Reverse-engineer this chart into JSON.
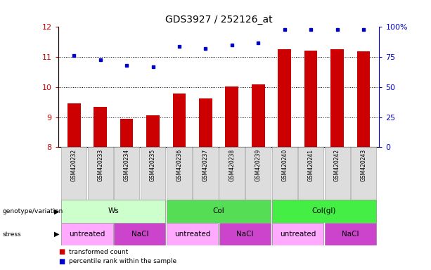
{
  "title": "GDS3927 / 252126_at",
  "samples": [
    "GSM420232",
    "GSM420233",
    "GSM420234",
    "GSM420235",
    "GSM420236",
    "GSM420237",
    "GSM420238",
    "GSM420239",
    "GSM420240",
    "GSM420241",
    "GSM420242",
    "GSM420243"
  ],
  "bar_values": [
    9.45,
    9.35,
    8.95,
    9.05,
    9.78,
    9.63,
    10.02,
    10.08,
    11.25,
    11.22,
    11.25,
    11.18
  ],
  "dot_values": [
    76,
    73,
    68,
    67,
    84,
    82,
    85,
    87,
    98,
    98,
    98,
    98
  ],
  "bar_color": "#cc0000",
  "dot_color": "#0000cc",
  "ylim_left": [
    8,
    12
  ],
  "ylim_right": [
    0,
    100
  ],
  "yticks_left": [
    8,
    9,
    10,
    11,
    12
  ],
  "yticks_right": [
    0,
    25,
    50,
    75,
    100
  ],
  "ytick_labels_right": [
    "0",
    "25",
    "50",
    "75",
    "100%"
  ],
  "hgrid_at": [
    9,
    10,
    11
  ],
  "genotype_groups": [
    {
      "label": "Ws",
      "start": 0,
      "end": 4,
      "color": "#ccffcc"
    },
    {
      "label": "Col",
      "start": 4,
      "end": 8,
      "color": "#55dd55"
    },
    {
      "label": "Col(gl)",
      "start": 8,
      "end": 12,
      "color": "#44ee44"
    }
  ],
  "stress_groups": [
    {
      "label": "untreated",
      "start": 0,
      "end": 2,
      "color": "#ffaaff"
    },
    {
      "label": "NaCl",
      "start": 2,
      "end": 4,
      "color": "#cc44cc"
    },
    {
      "label": "untreated",
      "start": 4,
      "end": 6,
      "color": "#ffaaff"
    },
    {
      "label": "NaCl",
      "start": 6,
      "end": 8,
      "color": "#cc44cc"
    },
    {
      "label": "untreated",
      "start": 8,
      "end": 10,
      "color": "#ffaaff"
    },
    {
      "label": "NaCl",
      "start": 10,
      "end": 12,
      "color": "#cc44cc"
    }
  ],
  "legend_bar_label": "transformed count",
  "legend_dot_label": "percentile rank within the sample",
  "genotype_label": "genotype/variation",
  "stress_label": "stress",
  "bg_color": "#ffffff",
  "label_color_left": "#cc0000",
  "label_color_right": "#0000cc",
  "bar_width": 0.5
}
